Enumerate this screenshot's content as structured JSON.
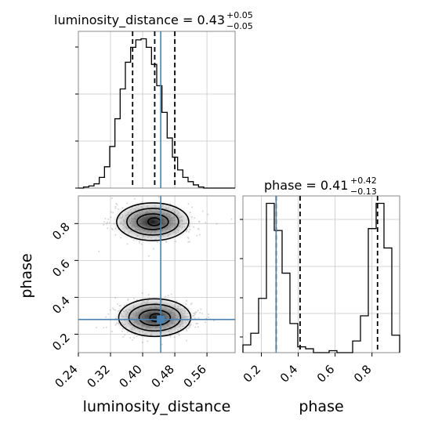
{
  "chart_data": {
    "type": "corner",
    "parameters": [
      "luminosity_distance",
      "phase"
    ],
    "titles": [
      {
        "param": "luminosity_distance",
        "text": "luminosity_distance = 0.43",
        "plus": "+0.05",
        "minus": "−0.05"
      },
      {
        "param": "phase",
        "text": "phase = 0.41",
        "plus": "+0.42",
        "minus": "−0.13"
      }
    ],
    "axis_labels": {
      "x1": "luminosity_distance",
      "x2": "phase",
      "y": "phase"
    },
    "ticks": {
      "luminosity_distance": [
        "0.24",
        "0.32",
        "0.40",
        "0.48",
        "0.56"
      ],
      "phase": [
        "0.2",
        "0.4",
        "0.6",
        "0.8"
      ]
    },
    "ranges": {
      "luminosity_distance": [
        0.24,
        0.63
      ],
      "phase": [
        0.1,
        0.95
      ]
    },
    "truths": {
      "luminosity_distance": 0.445,
      "phase": 0.28
    },
    "quantiles": {
      "luminosity_distance": [
        0.375,
        0.43,
        0.48
      ],
      "phase": [
        0.28,
        0.41,
        0.83
      ]
    },
    "hist_luminosity_distance": {
      "bins": [
        0.24,
        0.253,
        0.266,
        0.279,
        0.292,
        0.305,
        0.318,
        0.331,
        0.344,
        0.357,
        0.37,
        0.383,
        0.396,
        0.409,
        0.422,
        0.435,
        0.448,
        0.461,
        0.474,
        0.487,
        0.5,
        0.513,
        0.526,
        0.539,
        0.552,
        0.565,
        0.578,
        0.591,
        0.604,
        0.617,
        0.63
      ],
      "counts": [
        0,
        1,
        2,
        4,
        10,
        20,
        39,
        65,
        93,
        118,
        132,
        139,
        140,
        132,
        116,
        96,
        71,
        47,
        29,
        17,
        10,
        6,
        3,
        1,
        0,
        0,
        0,
        0,
        0,
        0
      ]
    },
    "hist_phase": {
      "bins": [
        0.1,
        0.1425,
        0.185,
        0.2275,
        0.27,
        0.3125,
        0.355,
        0.3975,
        0.44,
        0.4825,
        0.525,
        0.5675,
        0.61,
        0.6525,
        0.695,
        0.7375,
        0.78,
        0.8225,
        0.865,
        0.9075,
        0.95
      ],
      "counts": [
        4,
        10,
        28,
        77,
        63,
        41,
        15,
        3,
        2,
        0,
        0,
        1,
        0,
        0,
        6,
        19,
        64,
        77,
        54,
        9
      ]
    },
    "joint_modes": [
      {
        "luminosity_distance": 0.425,
        "phase": 0.81
      },
      {
        "luminosity_distance": 0.43,
        "phase": 0.29
      }
    ],
    "colors": {
      "truth": "#4682b4",
      "hist": "#000000",
      "quantile": "#000000",
      "grid": "#c8c8c8"
    }
  }
}
